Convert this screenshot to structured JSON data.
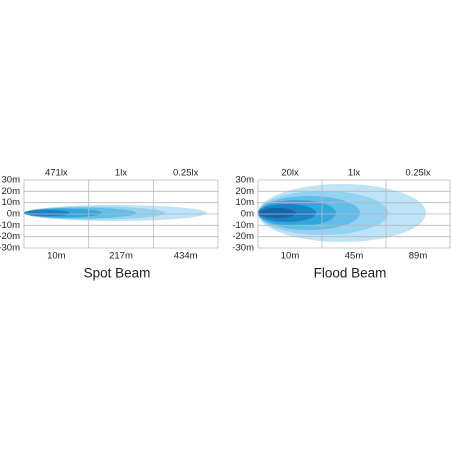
{
  "panels": [
    {
      "title": "Spot Beam",
      "top_labels": [
        "471lx",
        "1lx",
        "0.25lx"
      ],
      "bottom_labels": [
        "10m",
        "217m",
        "434m"
      ],
      "y_labels": [
        "30m",
        "20m",
        "10m",
        "0m",
        "-10m",
        "-20m",
        "-30m"
      ]
    },
    {
      "title": "Flood  Beam",
      "top_labels": [
        "20lx",
        "1lx",
        "0.25lx"
      ],
      "bottom_labels": [
        "10m",
        "45m",
        "89m"
      ],
      "y_labels": [
        "30m",
        "20m",
        "10m",
        "0m",
        "-10m",
        "-20m",
        "-30m"
      ]
    }
  ]
}
